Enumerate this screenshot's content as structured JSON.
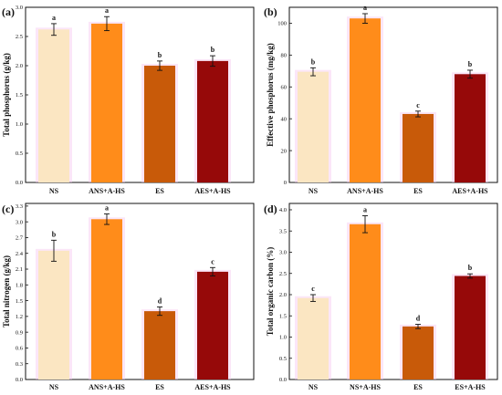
{
  "colors": {
    "cream": "#fbe6c2",
    "orange": "#ff8c1a",
    "burnt_orange": "#c85a09",
    "dark_red": "#960909",
    "halo": "#f7c8f0"
  },
  "chart_data": [
    {
      "panel_label": "(a)",
      "type": "bar",
      "categories": [
        "NS",
        "ANS+A-HS",
        "ES",
        "AES+A-HS"
      ],
      "values": [
        2.62,
        2.72,
        2.0,
        2.08
      ],
      "errors": [
        0.1,
        0.12,
        0.08,
        0.09
      ],
      "letters": [
        "a",
        "a",
        "b",
        "b"
      ],
      "ylabel": "Total phosphorus (g/kg)",
      "ylim": [
        0,
        3.0
      ],
      "yticks": [
        "0.0",
        "0.5",
        "1.0",
        "1.5",
        "2.0",
        "2.5",
        "3.0"
      ],
      "grid": false,
      "legend": false
    },
    {
      "panel_label": "(b)",
      "type": "bar",
      "categories": [
        "NS",
        "ANS+A-HS",
        "ES",
        "AES+A-HS"
      ],
      "values": [
        69.5,
        103,
        43,
        68
      ],
      "errors": [
        2.5,
        3,
        1.8,
        2.5
      ],
      "letters": [
        "b",
        "a",
        "c",
        "b"
      ],
      "ylabel": "Effective phosphorus (mg/kg)",
      "ylim": [
        0,
        110
      ],
      "yticks": [
        "0",
        "20",
        "40",
        "60",
        "80",
        "100"
      ],
      "grid": false,
      "legend": false
    },
    {
      "panel_label": "(c)",
      "type": "bar",
      "categories": [
        "NS",
        "ANS+A-HS",
        "ES",
        "AES+A-HS"
      ],
      "values": [
        2.45,
        3.05,
        1.3,
        2.05
      ],
      "errors": [
        0.2,
        0.1,
        0.08,
        0.08
      ],
      "letters": [
        "b",
        "a",
        "d",
        "c"
      ],
      "ylabel": "Total nitrogen (g/kg)",
      "ylim": [
        0,
        3.35
      ],
      "yticks": [
        "0.0",
        "0.3",
        "0.6",
        "0.9",
        "1.2",
        "1.5",
        "1.8",
        "2.1",
        "2.4",
        "2.7",
        "3.0",
        "3.3"
      ],
      "grid": false,
      "legend": false
    },
    {
      "panel_label": "(d)",
      "type": "bar",
      "categories": [
        "NS",
        "NS+A-HS",
        "ES",
        "ES+A-HS"
      ],
      "values": [
        1.92,
        3.66,
        1.25,
        2.44
      ],
      "errors": [
        0.08,
        0.2,
        0.05,
        0.05
      ],
      "letters": [
        "c",
        "a",
        "d",
        "b"
      ],
      "ylabel": "Total organic carbon (%)",
      "ylim": [
        0,
        4.15
      ],
      "yticks": [
        "0.0",
        "0.5",
        "1.0",
        "1.5",
        "2.0",
        "2.5",
        "3.0",
        "3.5",
        "4.0"
      ],
      "grid": false,
      "legend": false
    }
  ]
}
